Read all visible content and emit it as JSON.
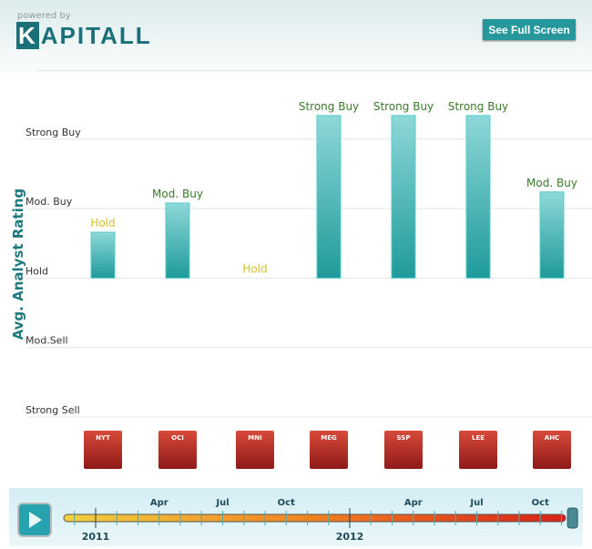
{
  "header": {
    "powered_by": "powered by",
    "logo_k": "K",
    "logo_rest": "APITALL",
    "fullscreen_label": "See Full Screen"
  },
  "colors": {
    "bar": "#2aa8a8",
    "label_hold": "#d6c22c",
    "label_buy": "#3a7a2a",
    "axis_title": "#1f7a7f"
  },
  "chart_data": {
    "type": "bar",
    "ylabel": "Avg. Analyst Rating",
    "ylim": [
      1,
      5.6
    ],
    "baseline": 3,
    "yticks": [
      {
        "value": 5,
        "label": "Strong Buy"
      },
      {
        "value": 4,
        "label": "Mod. Buy"
      },
      {
        "value": 3,
        "label": "Hold"
      },
      {
        "value": 2,
        "label": "Mod.Sell"
      },
      {
        "value": 1,
        "label": "Strong Sell"
      }
    ],
    "categories": [
      "NYT",
      "OCI",
      "MNI",
      "MEG",
      "SSP",
      "LEE",
      "AHC"
    ],
    "values": [
      3.66,
      4.08,
      3.0,
      5.34,
      5.34,
      5.34,
      4.24
    ],
    "data_labels": [
      "Hold",
      "Mod. Buy",
      "Hold",
      "Strong Buy",
      "Strong Buy",
      "Strong Buy",
      "Mod. Buy"
    ],
    "grid": true
  },
  "timeline": {
    "years": [
      {
        "label": "2011",
        "month": 0
      },
      {
        "label": "2012",
        "month": 12
      }
    ],
    "months": [
      {
        "label": "Apr",
        "month": 3
      },
      {
        "label": "Jul",
        "month": 6
      },
      {
        "label": "Oct",
        "month": 9
      },
      {
        "label": "Apr",
        "month": 15
      },
      {
        "label": "Jul",
        "month": 18
      },
      {
        "label": "Oct",
        "month": 21
      }
    ],
    "position_month": 22.5,
    "play_label": "play"
  }
}
